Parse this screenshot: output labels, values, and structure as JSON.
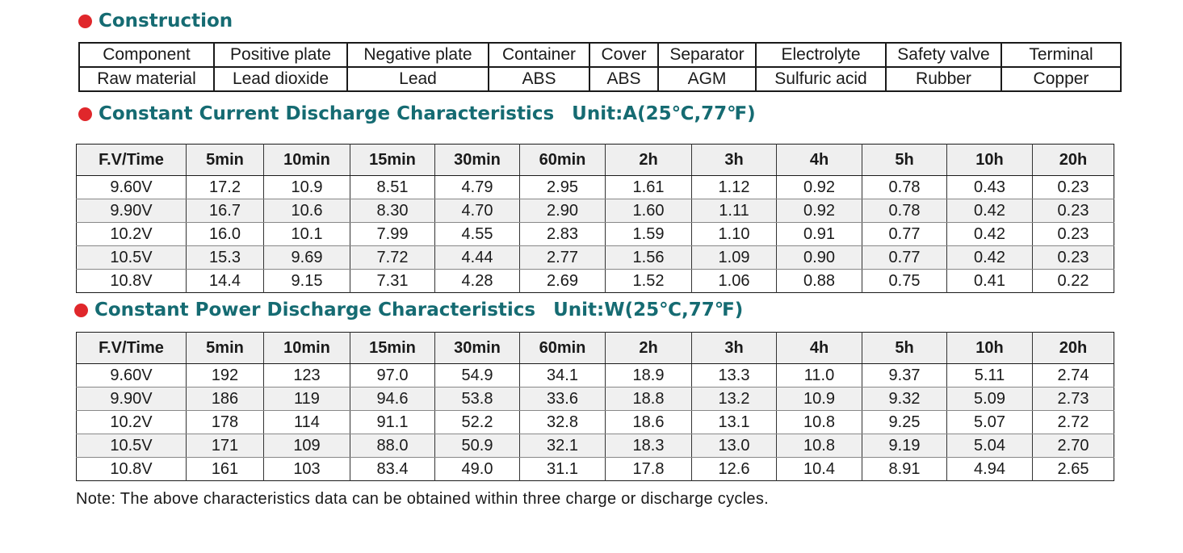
{
  "construction": {
    "title": "Construction",
    "header": [
      "Component",
      "Positive plate",
      "Negative plate",
      "Container",
      "Cover",
      "Separator",
      "Electrolyte",
      "Safety valve",
      "Terminal"
    ],
    "row": [
      "Raw material",
      "Lead dioxide",
      "Lead",
      "ABS",
      "ABS",
      "AGM",
      "Sulfuric acid",
      "Rubber",
      "Copper"
    ]
  },
  "current": {
    "title": "Constant Current Discharge Characteristics",
    "unit": "Unit:A(25℃,77℉)",
    "header": [
      "F.V/Time",
      "5min",
      "10min",
      "15min",
      "30min",
      "60min",
      "2h",
      "3h",
      "4h",
      "5h",
      "10h",
      "20h"
    ],
    "rows": [
      [
        "9.60V",
        "17.2",
        "10.9",
        "8.51",
        "4.79",
        "2.95",
        "1.61",
        "1.12",
        "0.92",
        "0.78",
        "0.43",
        "0.23"
      ],
      [
        "9.90V",
        "16.7",
        "10.6",
        "8.30",
        "4.70",
        "2.90",
        "1.60",
        "1.11",
        "0.92",
        "0.78",
        "0.42",
        "0.23"
      ],
      [
        "10.2V",
        "16.0",
        "10.1",
        "7.99",
        "4.55",
        "2.83",
        "1.59",
        "1.10",
        "0.91",
        "0.77",
        "0.42",
        "0.23"
      ],
      [
        "10.5V",
        "15.3",
        "9.69",
        "7.72",
        "4.44",
        "2.77",
        "1.56",
        "1.09",
        "0.90",
        "0.77",
        "0.42",
        "0.23"
      ],
      [
        "10.8V",
        "14.4",
        "9.15",
        "7.31",
        "4.28",
        "2.69",
        "1.52",
        "1.06",
        "0.88",
        "0.75",
        "0.41",
        "0.22"
      ]
    ]
  },
  "power": {
    "title": "Constant Power Discharge Characteristics",
    "unit": "Unit:W(25℃,77℉)",
    "header": [
      "F.V/Time",
      "5min",
      "10min",
      "15min",
      "30min",
      "60min",
      "2h",
      "3h",
      "4h",
      "5h",
      "10h",
      "20h"
    ],
    "rows": [
      [
        "9.60V",
        "192",
        "123",
        "97.0",
        "54.9",
        "34.1",
        "18.9",
        "13.3",
        "11.0",
        "9.37",
        "5.11",
        "2.74"
      ],
      [
        "9.90V",
        "186",
        "119",
        "94.6",
        "53.8",
        "33.6",
        "18.8",
        "13.2",
        "10.9",
        "9.32",
        "5.09",
        "2.73"
      ],
      [
        "10.2V",
        "178",
        "114",
        "91.1",
        "52.2",
        "32.8",
        "18.6",
        "13.1",
        "10.8",
        "9.25",
        "5.07",
        "2.72"
      ],
      [
        "10.5V",
        "171",
        "109",
        "88.0",
        "50.9",
        "32.1",
        "18.3",
        "13.0",
        "10.8",
        "9.19",
        "5.04",
        "2.70"
      ],
      [
        "10.8V",
        "161",
        "103",
        "83.4",
        "49.0",
        "31.1",
        "17.8",
        "12.6",
        "10.4",
        "8.91",
        "4.94",
        "2.65"
      ]
    ]
  },
  "note": "Note: The above characteristics data can be obtained within three charge or discharge cycles.",
  "colors": {
    "title": "#156b72",
    "bullet": "#e0272b",
    "header_bg": "#efefef"
  }
}
